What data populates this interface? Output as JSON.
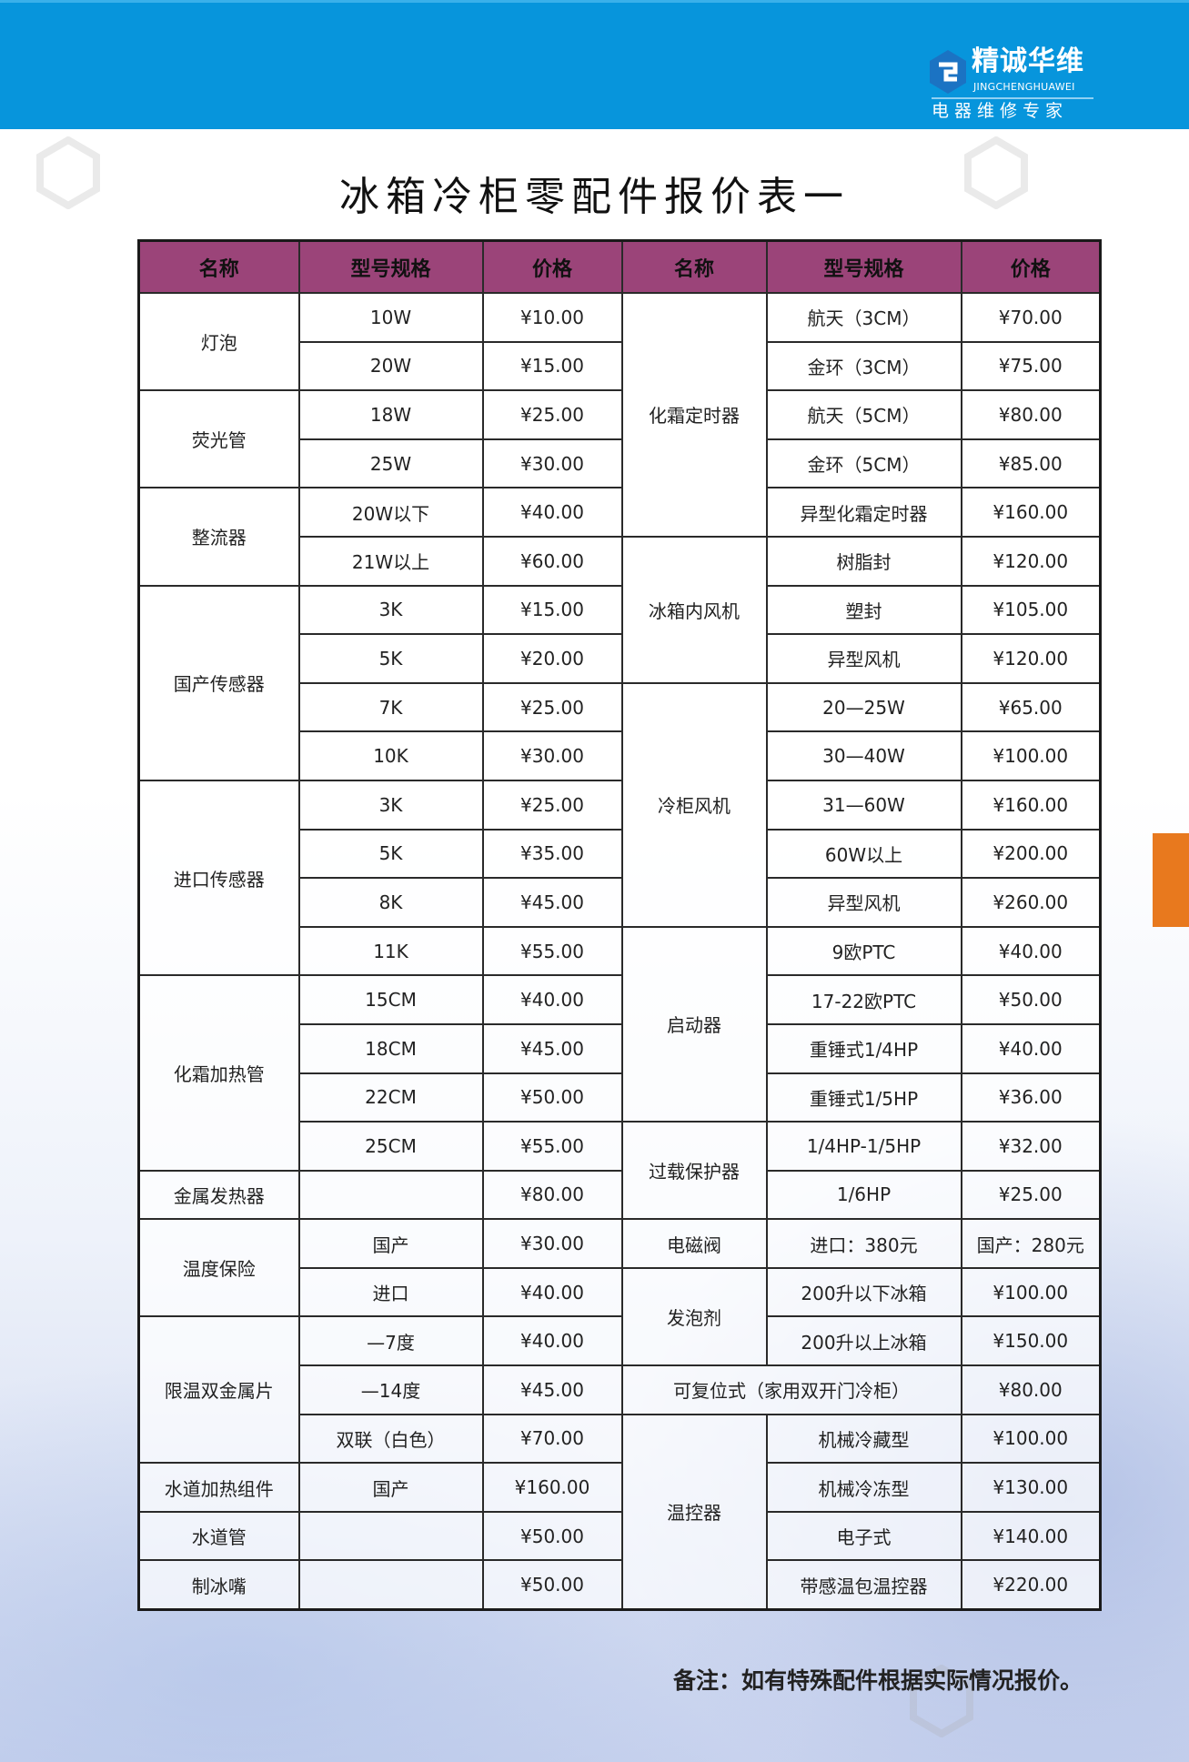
{
  "brand": {
    "name_cn": "精诚华维",
    "name_en": "JINGCHENGHUAWEI",
    "slogan": "电器维修专家",
    "color": "#0795dc"
  },
  "title": "冰箱冷柜零配件报价表一",
  "headers": [
    "名称",
    "型号规格",
    "价格",
    "名称",
    "型号规格",
    "价格"
  ],
  "left": [
    {
      "name": "灯泡",
      "items": [
        [
          "10W",
          "¥10.00"
        ],
        [
          "20W",
          "¥15.00"
        ]
      ]
    },
    {
      "name": "荧光管",
      "items": [
        [
          "18W",
          "¥25.00"
        ],
        [
          "25W",
          "¥30.00"
        ]
      ]
    },
    {
      "name": "整流器",
      "items": [
        [
          "20W以下",
          "¥40.00"
        ],
        [
          "21W以上",
          "¥60.00"
        ]
      ]
    },
    {
      "name": "国产传感器",
      "items": [
        [
          "3K",
          "¥15.00"
        ],
        [
          "5K",
          "¥20.00"
        ],
        [
          "7K",
          "¥25.00"
        ],
        [
          "10K",
          "¥30.00"
        ]
      ]
    },
    {
      "name": "进口传感器",
      "items": [
        [
          "3K",
          "¥25.00"
        ],
        [
          "5K",
          "¥35.00"
        ],
        [
          "8K",
          "¥45.00"
        ],
        [
          "11K",
          "¥55.00"
        ]
      ]
    },
    {
      "name": "化霜加热管",
      "items": [
        [
          "15CM",
          "¥40.00"
        ],
        [
          "18CM",
          "¥45.00"
        ],
        [
          "22CM",
          "¥50.00"
        ],
        [
          "25CM",
          "¥55.00"
        ]
      ]
    },
    {
      "name": "金属发热器",
      "items": [
        [
          "",
          "¥80.00"
        ]
      ]
    },
    {
      "name": "温度保险",
      "items": [
        [
          "国产",
          "¥30.00"
        ],
        [
          "进口",
          "¥40.00"
        ]
      ]
    },
    {
      "name": "限温双金属片",
      "items": [
        [
          "—7度",
          "¥40.00"
        ],
        [
          "—14度",
          "¥45.00"
        ],
        [
          "双联（白色）",
          "¥70.00"
        ]
      ]
    },
    {
      "name": "水道加热组件",
      "items": [
        [
          "国产",
          "¥160.00"
        ]
      ]
    },
    {
      "name": "水道管",
      "items": [
        [
          "",
          "¥50.00"
        ]
      ]
    },
    {
      "name": "制冰嘴",
      "items": [
        [
          "",
          "¥50.00"
        ]
      ]
    }
  ],
  "right": [
    {
      "name": "化霜定时器",
      "items": [
        [
          "航天（3CM）",
          "¥70.00"
        ],
        [
          "金环（3CM）",
          "¥75.00"
        ],
        [
          "航天（5CM）",
          "¥80.00"
        ],
        [
          "金环（5CM）",
          "¥85.00"
        ],
        [
          "异型化霜定时器",
          "¥160.00"
        ]
      ]
    },
    {
      "name": "冰箱内风机",
      "items": [
        [
          "树脂封",
          "¥120.00"
        ],
        [
          "塑封",
          "¥105.00"
        ],
        [
          "异型风机",
          "¥120.00"
        ]
      ]
    },
    {
      "name": "冷柜风机",
      "items": [
        [
          "20—25W",
          "¥65.00"
        ],
        [
          "30—40W",
          "¥100.00"
        ],
        [
          "31—60W",
          "¥160.00"
        ],
        [
          "60W以上",
          "¥200.00"
        ],
        [
          "异型风机",
          "¥260.00"
        ]
      ]
    },
    {
      "name": "启动器",
      "items": [
        [
          "9欧PTC",
          "¥40.00"
        ],
        [
          "17-22欧PTC",
          "¥50.00"
        ],
        [
          "重锤式1/4HP",
          "¥40.00"
        ],
        [
          "重锤式1/5HP",
          "¥36.00"
        ]
      ]
    },
    {
      "name": "过载保护器",
      "items": [
        [
          "1/4HP-1/5HP",
          "¥32.00"
        ],
        [
          "1/6HP",
          "¥25.00"
        ]
      ]
    },
    {
      "name": "电磁阀",
      "items": [
        [
          "进口：380元",
          "国产：280元"
        ]
      ]
    },
    {
      "name": "发泡剂",
      "items": [
        [
          "200升以下冰箱",
          "¥100.00"
        ],
        [
          "200升以上冰箱",
          "¥150.00"
        ]
      ]
    },
    {
      "name": "可复位式（家用双开门冷柜）",
      "merged": true,
      "items": [
        [
          "",
          "¥80.00"
        ]
      ]
    },
    {
      "name": "温控器",
      "items": [
        [
          "机械冷藏型",
          "¥100.00"
        ],
        [
          "机械冷冻型",
          "¥130.00"
        ],
        [
          "电子式",
          "¥140.00"
        ],
        [
          "带感温包温控器",
          "¥220.00"
        ]
      ]
    }
  ],
  "note": "备注：如有特殊配件根据实际情况报价。",
  "colors": {
    "header_bg": "#9b4479",
    "accent_tab": "#e8791e"
  }
}
